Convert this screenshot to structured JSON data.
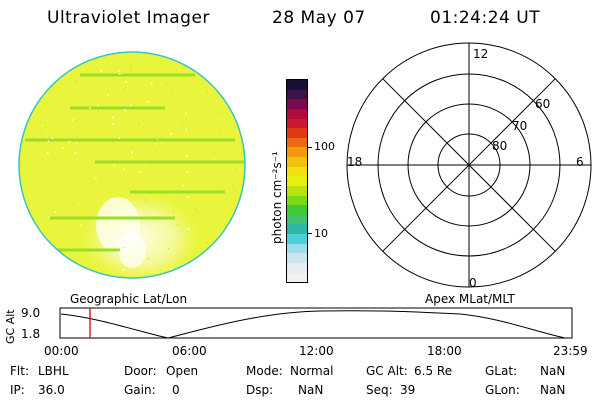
{
  "header": {
    "title": "Ultraviolet Imager",
    "date": "28 May 07",
    "time": "01:24:24 UT"
  },
  "colorbar": {
    "unit_label": "photon cm⁻²s⁻¹",
    "tick_100": "100",
    "tick_10": "10",
    "colors": [
      "#f0f0f0",
      "#e6ecf0",
      "#c9e6ee",
      "#9fdcea",
      "#4ccfd9",
      "#2fb6a8",
      "#40c070",
      "#3fca3a",
      "#7cd818",
      "#b6e410",
      "#e8ee10",
      "#f2e010",
      "#f4c010",
      "#f49810",
      "#ee6a10",
      "#e03a14",
      "#cc1830",
      "#b00a40",
      "#7a0a50",
      "#40104a",
      "#151035"
    ]
  },
  "polar": {
    "labels": {
      "mlt_12": "12",
      "mlt_18": "18",
      "mlt_6": "6",
      "mlt_0": "0",
      "lat_80": "80",
      "lat_70": "70",
      "lat_60": "60"
    }
  },
  "timeline": {
    "left_label": "Geographic Lat/Lon",
    "right_label": "Apex MLat/MLT",
    "y_axis_label": "GC Alt",
    "y_ticks": [
      "9.0",
      "1.8"
    ],
    "x_ticks": [
      "00:00",
      "06:00",
      "12:00",
      "18:00",
      "23:59"
    ],
    "current_time_fraction": 0.0586
  },
  "info": {
    "flt_label": "Flt:",
    "flt_value": "LBHL",
    "ip_label": "IP:",
    "ip_value": "36.0",
    "door_label": "Door:",
    "door_value": "Open",
    "gain_label": "Gain:",
    "gain_value": "0",
    "mode_label": "Mode:",
    "mode_value": "Normal",
    "dsp_label": "Dsp:",
    "dsp_value": "NaN",
    "gcalt_label": "GC Alt:",
    "gcalt_value": "6.5 Re",
    "seq_label": "Seq:",
    "seq_value": "39",
    "glat_label": "GLat:",
    "glat_value": "NaN",
    "glon_label": "GLon:",
    "glon_value": "NaN"
  }
}
